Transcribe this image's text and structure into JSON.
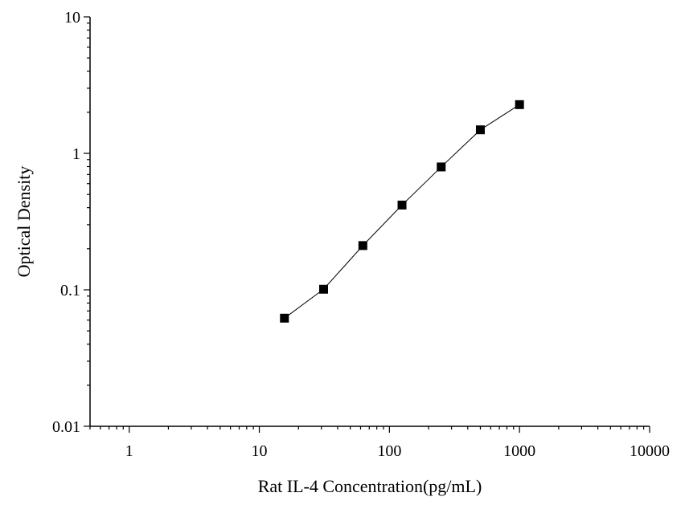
{
  "chart_data": {
    "type": "scatter",
    "title": "",
    "xlabel": "Rat IL-4 Concentration(pg/mL)",
    "ylabel": "Optical Density",
    "x_scale": "log",
    "y_scale": "log",
    "xlim": [
      0.5,
      10000
    ],
    "ylim": [
      0.01,
      10
    ],
    "x_tick_labels": [
      "1",
      "10",
      "100",
      "1000",
      "10000"
    ],
    "y_tick_labels": [
      "0.01",
      "0.1",
      "1",
      "10"
    ],
    "grid": false,
    "marker": "square",
    "connect_points": true,
    "series": [
      {
        "x": [
          15.6,
          31.2,
          62.5,
          125,
          250,
          500,
          1000
        ],
        "y": [
          0.062,
          0.101,
          0.211,
          0.418,
          0.795,
          1.487,
          2.275
        ]
      }
    ],
    "colors": {
      "marker": "#000000",
      "line": "#000000",
      "axis": "#000000"
    }
  }
}
